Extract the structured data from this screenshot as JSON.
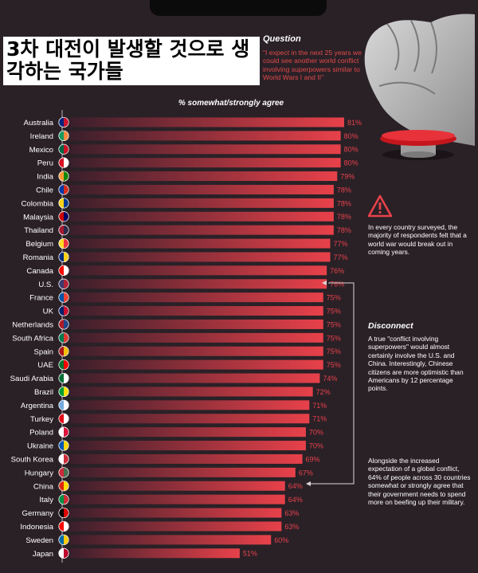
{
  "title": "3차 대전이 발생할 것으로 생각하는 국가들",
  "question": {
    "label": "Question",
    "text": "\"I expect in the next 25 years we could see another world conflict involving superpowers similar to World Wars I and II\""
  },
  "notes": {
    "majority": "In every country surveyed, the majority of respondents felt that a world war would break out in coming years.",
    "disconnect_title": "Disconnect",
    "disconnect": "A true \"conflict involving superpowers\" would almost certainly involve the U.S. and China. Interestingly, Chinese citizens are more optimistic than Americans by 12 percentage points.",
    "military": "Alongside the increased expectation of a global conflict, 64% of people across 30 countries somewhat or strongly agree that their government needs to spend more on beefing up their military."
  },
  "icons": {
    "warning": "warning-triangle-icon",
    "fist": "fist-icon",
    "button": "red-button-icon",
    "flags": "flag-icon"
  },
  "colors": {
    "background": "#2a2127",
    "bar_start": "#3a1f2b",
    "bar_end": "#e8414a",
    "value_text": "#e8414a",
    "accent": "#e8414a"
  },
  "chart_data": {
    "type": "bar",
    "orientation": "horizontal",
    "xlabel": "% somewhat/strongly agree",
    "ylabel": "",
    "xlim": [
      0,
      100
    ],
    "value_suffix": "%",
    "categories": [
      "Australia",
      "Ireland",
      "Mexico",
      "Peru",
      "India",
      "Chile",
      "Colombia",
      "Malaysia",
      "Thailand",
      "Belgium",
      "Romania",
      "Canada",
      "U.S.",
      "France",
      "UK",
      "Netherlands",
      "South Africa",
      "Spain",
      "UAE",
      "Saudi Arabia",
      "Brazil",
      "Argentina",
      "Turkey",
      "Poland",
      "Ukraine",
      "South Korea",
      "Hungary",
      "China",
      "Italy",
      "Germany",
      "Indonesia",
      "Sweden",
      "Japan"
    ],
    "values": [
      81,
      80,
      80,
      80,
      79,
      78,
      78,
      78,
      78,
      77,
      77,
      76,
      76,
      75,
      75,
      75,
      75,
      75,
      75,
      74,
      72,
      71,
      71,
      70,
      70,
      69,
      67,
      64,
      64,
      63,
      63,
      60,
      51
    ],
    "grid": false,
    "legend": "none"
  }
}
